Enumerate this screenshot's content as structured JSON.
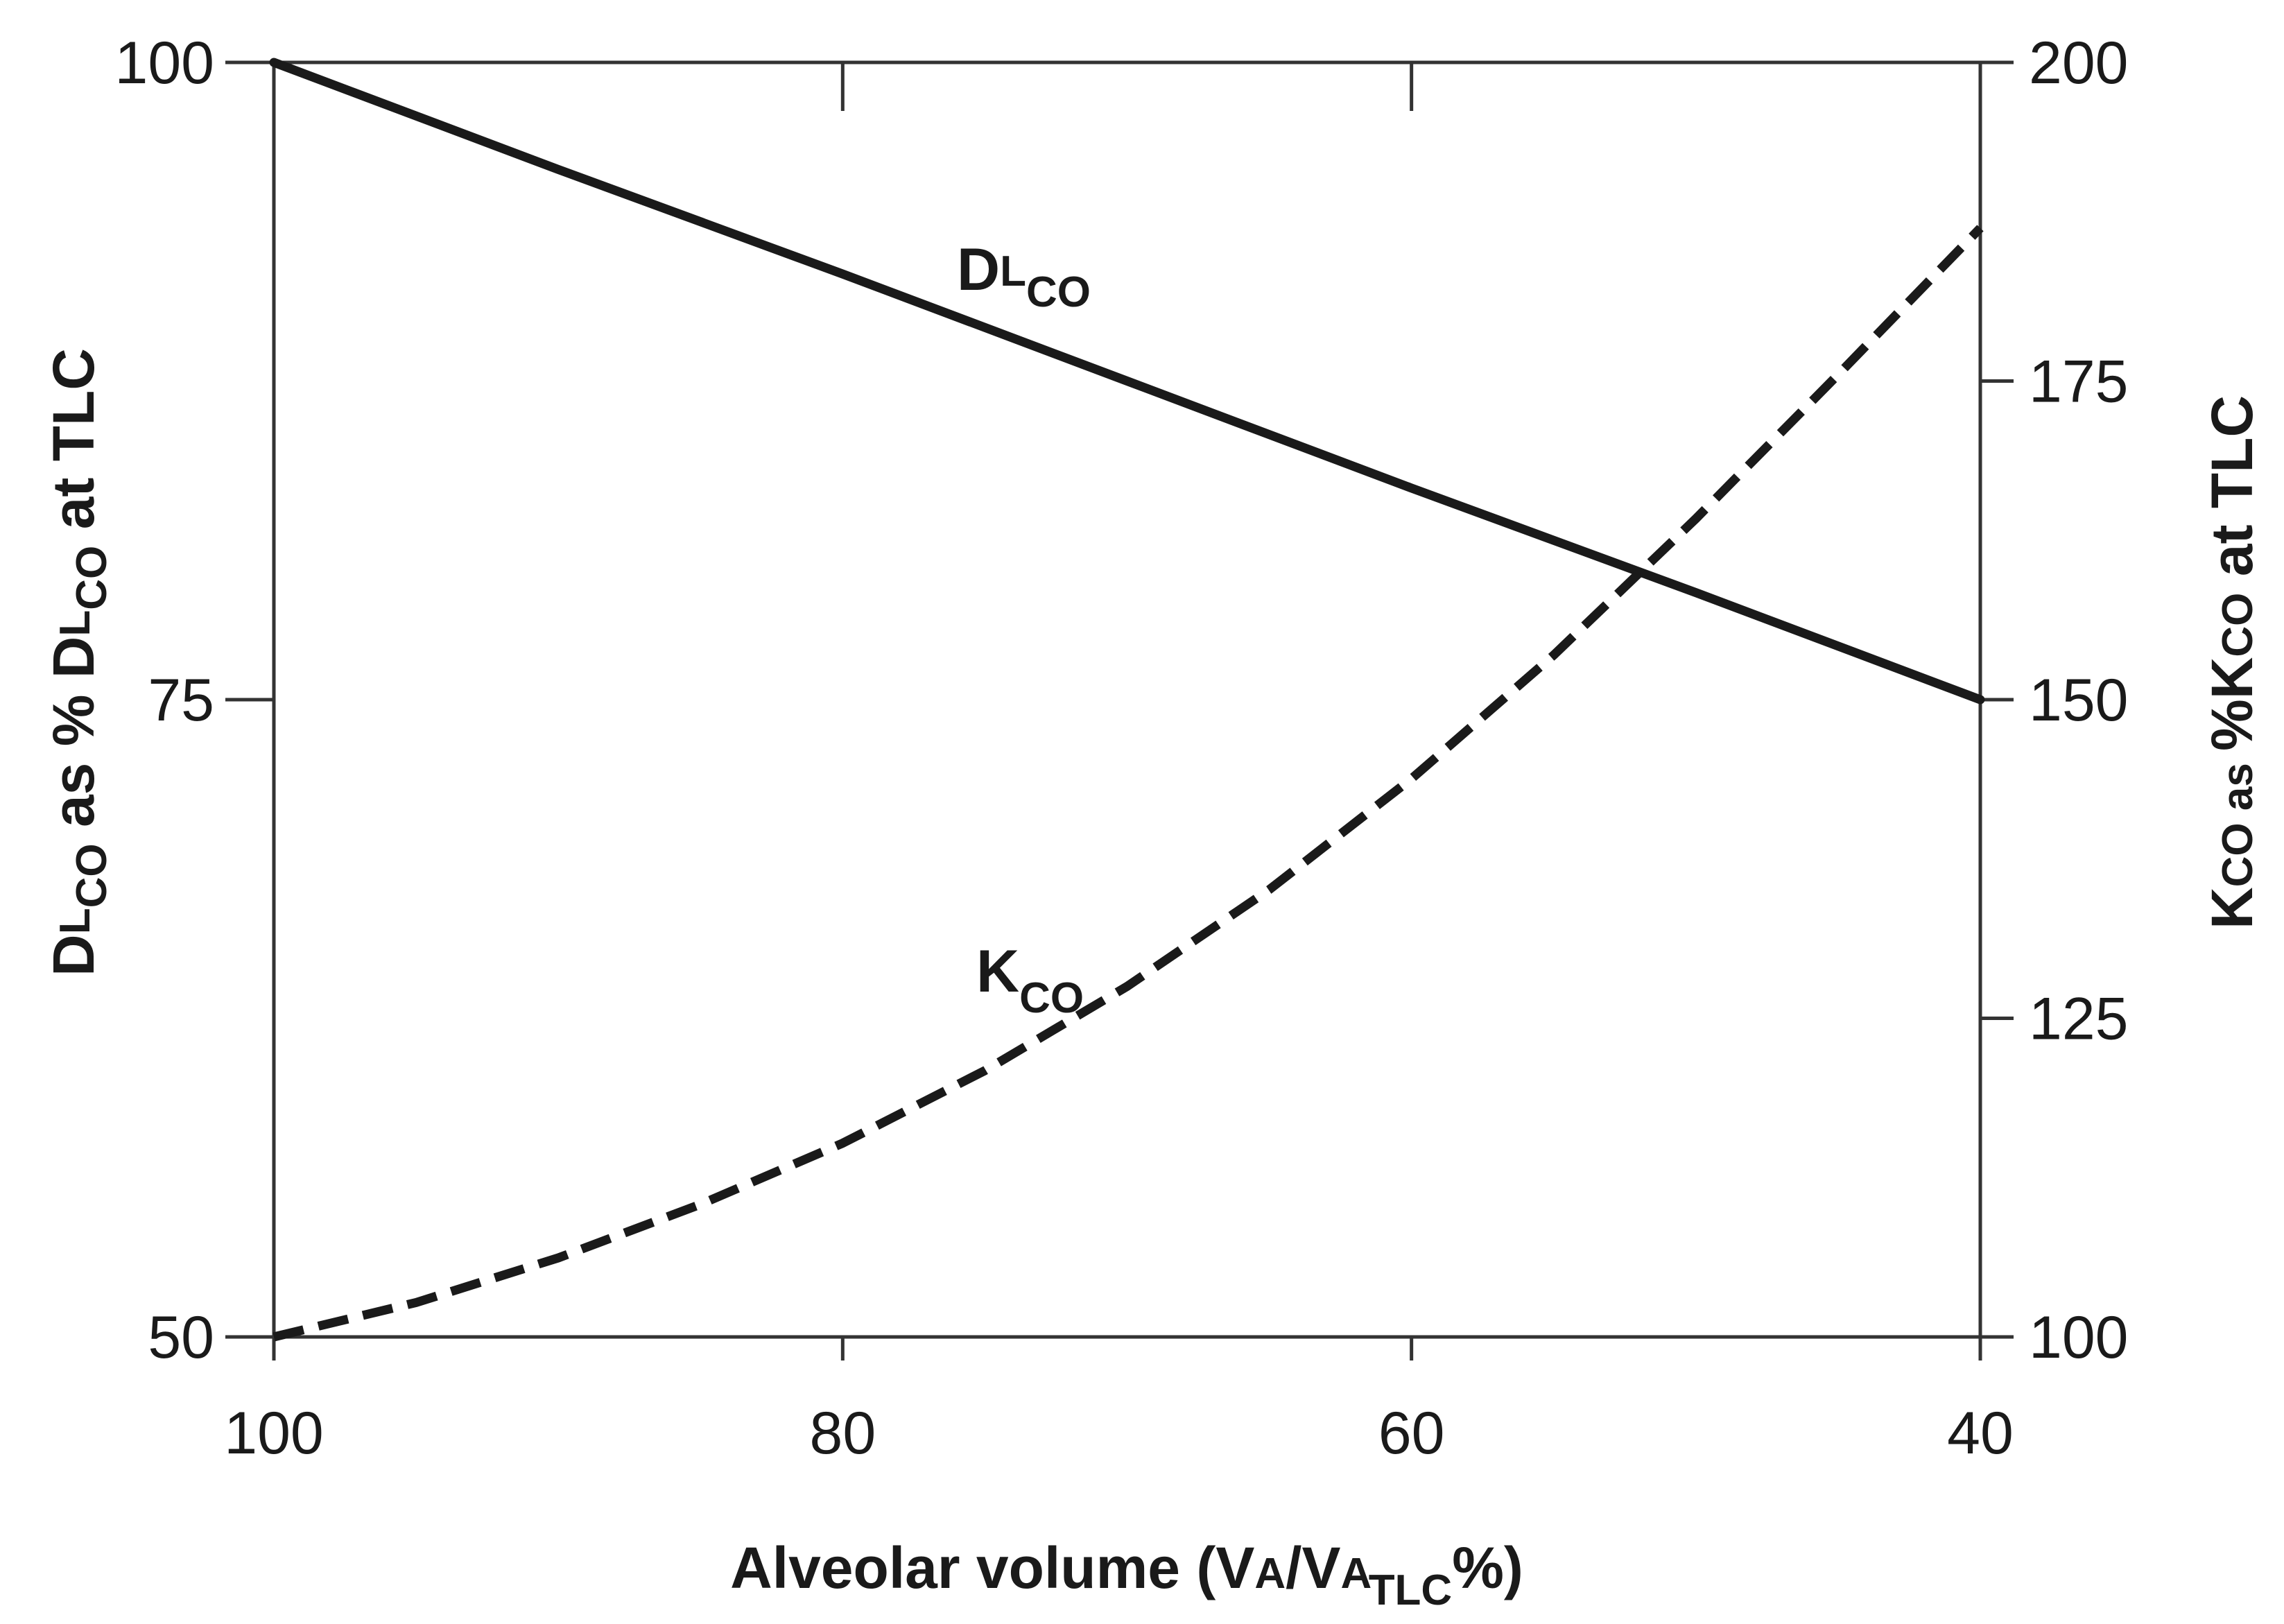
{
  "chart_data": {
    "type": "line",
    "xlabel": {
      "main": "Alveolar volume (V",
      "a": "A",
      "mid": "/V",
      "a2": "A",
      "sub": "TLC",
      "end": "%)"
    },
    "ylabel_left": {
      "d": "D",
      "l": "L",
      "co": "CO",
      "mid": " as % D",
      "l2": "L",
      "co2": "CO",
      "end": " at TLC"
    },
    "ylabel_right": {
      "k": "K",
      "co": "CO",
      "as": " as ",
      "mid": "%K",
      "co2": "CO",
      "end": " at TLC"
    },
    "x_reversed": true,
    "xlim": [
      100,
      40
    ],
    "ylim_left": [
      50,
      100
    ],
    "ylim_right": [
      100,
      200
    ],
    "x_ticks": [
      100,
      80,
      60,
      40
    ],
    "y_ticks_left": [
      100,
      75,
      50
    ],
    "y_ticks_right": [
      200,
      175,
      150,
      125,
      100
    ],
    "series": [
      {
        "name": "DLCO",
        "label_main": "D",
        "label_sub_small": "L",
        "label_sub": "CO",
        "axis": "left",
        "style": "solid",
        "x": [
          100,
          90,
          80,
          70,
          60,
          50,
          40
        ],
        "y": [
          100,
          95.8,
          91.7,
          87.5,
          83.3,
          79.2,
          75
        ]
      },
      {
        "name": "KCO",
        "label_main": "K",
        "label_sub": "CO",
        "axis": "right",
        "style": "dashed",
        "x": [
          100,
          95,
          90,
          85,
          80,
          75,
          70,
          65,
          60,
          55,
          50,
          45,
          40
        ],
        "y": [
          100,
          102.7,
          106.2,
          110.4,
          115.2,
          120.9,
          127.5,
          135.1,
          143.8,
          153.5,
          164.2,
          175.5,
          187
        ]
      }
    ]
  }
}
